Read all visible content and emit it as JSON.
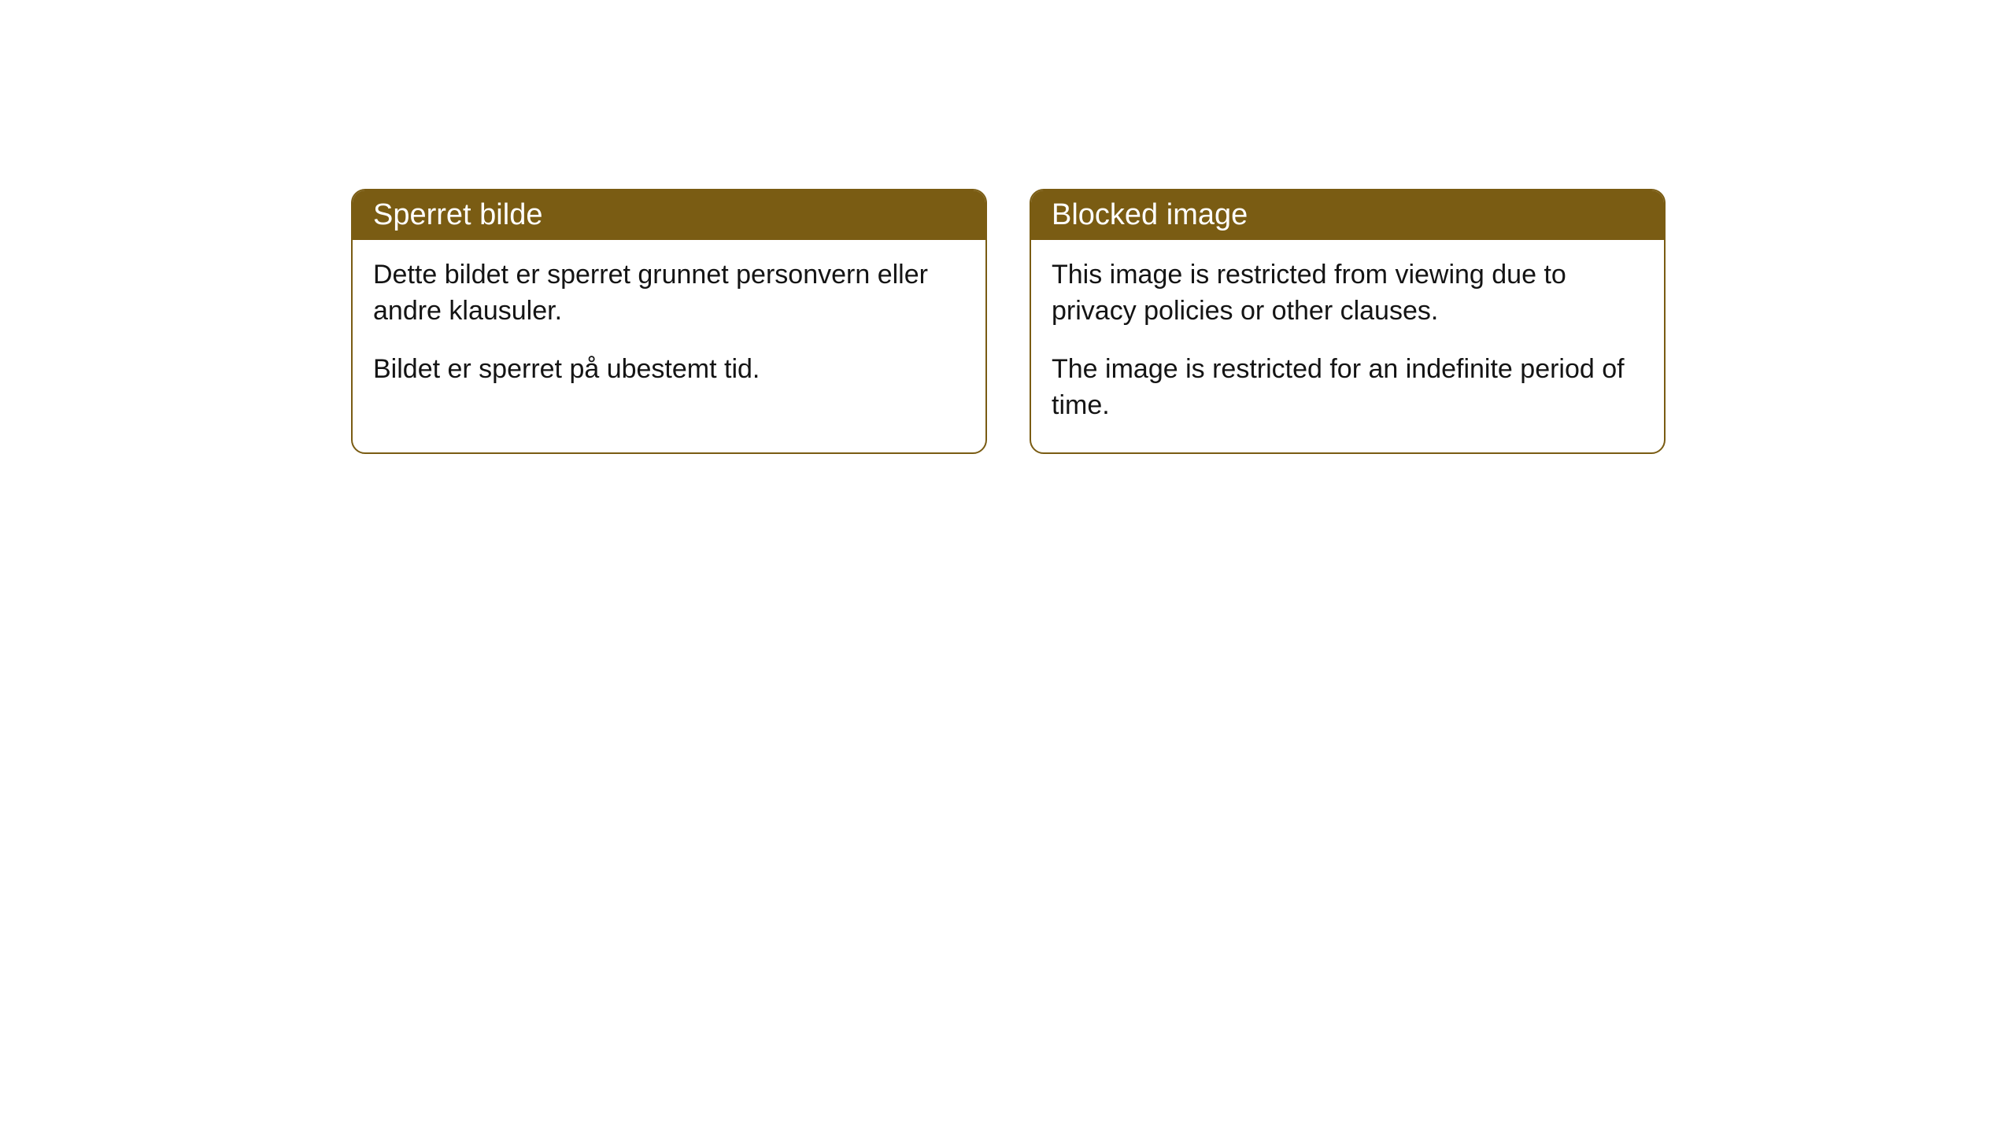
{
  "cards": [
    {
      "title": "Sperret bilde",
      "paragraph1": "Dette bildet er sperret grunnet personvern eller andre klausuler.",
      "paragraph2": "Bildet er sperret på ubestemt tid."
    },
    {
      "title": "Blocked image",
      "paragraph1": "This image is restricted from viewing due to privacy policies or other clauses.",
      "paragraph2": "The image is restricted for an indefinite period of time."
    }
  ],
  "styling": {
    "header_background": "#7a5c13",
    "header_text_color": "#ffffff",
    "body_text_color": "#141414",
    "border_color": "#7a5c13",
    "background_color": "#ffffff",
    "border_radius": 18,
    "header_fontsize": 38,
    "body_fontsize": 34
  }
}
